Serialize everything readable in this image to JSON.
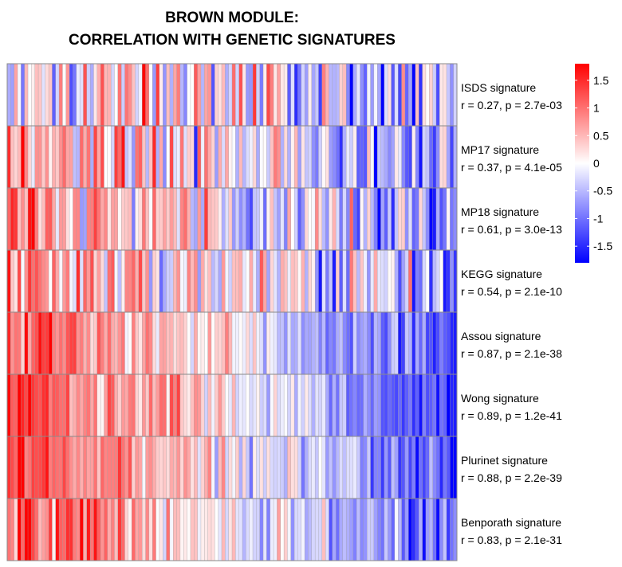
{
  "chart_data": {
    "type": "heatmap",
    "title": [
      "BROWN MODULE:",
      "CORRELATION WITH GENETIC SIGNATURES"
    ],
    "xlabel": "",
    "ylabel": "",
    "n_columns": 130,
    "rows": [
      {
        "label": "ISDS signature",
        "stat": "r = 0.27, p = 2.7e-03",
        "r": 0.27
      },
      {
        "label": "MP17 signature",
        "stat": "r = 0.37, p = 4.1e-05",
        "r": 0.37
      },
      {
        "label": "MP18 signature",
        "stat": "r = 0.61, p = 3.0e-13",
        "r": 0.61
      },
      {
        "label": "KEGG signature",
        "stat": "r = 0.54, p = 2.1e-10",
        "r": 0.54
      },
      {
        "label": "Assou signature",
        "stat": "r = 0.87, p = 2.1e-38",
        "r": 0.87
      },
      {
        "label": "Wong signature",
        "stat": "r = 0.89, p = 1.2e-41",
        "r": 0.89
      },
      {
        "label": "Plurinet signature",
        "stat": "r = 0.88, p = 2.2e-39",
        "r": 0.88
      },
      {
        "label": "Benporath signature",
        "stat": "r = 0.83, p = 2.1e-31",
        "r": 0.83
      }
    ],
    "color_scale": {
      "min": -1.8,
      "max": 1.8,
      "low": "#0000ff",
      "mid": "#ffffff",
      "high": "#ff0000",
      "ticks": [
        1.5,
        1,
        0.5,
        0,
        -0.5,
        -1,
        -1.5
      ]
    },
    "grid": true,
    "legend": "right"
  }
}
